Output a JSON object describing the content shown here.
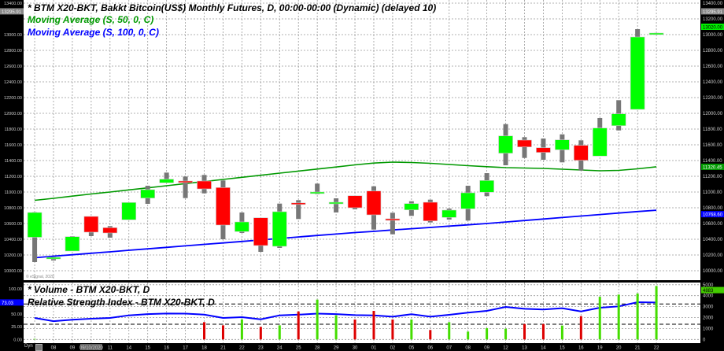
{
  "main_pane": {
    "title": "* BTM X20-BKT, Bakkt Bitcoin(US$) Monthly Futures, D, 00:00-00:00 (Dynamic) (delayed 10)",
    "study1": "Moving Average (S, 50, 0, C)",
    "study2": "Moving Average (S, 100, 0, C)",
    "copyright": "© eSignal, 2020",
    "price_ticks": [
      "13400.00",
      "13200.00",
      "13000.00",
      "12800.00",
      "12600.00",
      "12400.00",
      "12200.00",
      "12000.00",
      "11800.00",
      "11600.00",
      "11400.00",
      "11200.00",
      "11000.00",
      "10800.00",
      "10600.00",
      "10400.00",
      "10200.00",
      "10000.00"
    ],
    "left_tick_labels": [
      "13400.00",
      "13000.00",
      "12800.00",
      "12600.00",
      "12400.00",
      "12200.00",
      "12000.00",
      "11800.00",
      "11600.00",
      "11400.00",
      "11200.00",
      "11000.00",
      "10800.00",
      "10600.00",
      "10400.00",
      "10200.00",
      "10000.00"
    ],
    "tags": {
      "last_gray": "13295.91",
      "last_close": "13020.00",
      "ma50": "11320.45",
      "ma100": "10768.60"
    }
  },
  "lower_pane": {
    "volume_title": "* Volume - BTM X20-BKT, D",
    "rsi_title": "Relative Strength Index - BTM X20-BKT, D",
    "rsi_ticks": [
      "100.00",
      "50.00",
      "25.00",
      "0.00"
    ],
    "rsi_tag": "73.03",
    "volume_ticks": [
      "5000",
      "4000",
      "3000",
      "2000",
      "1000",
      "0"
    ],
    "volume_tag": "4883"
  },
  "x_axis": {
    "mode": "Dyn",
    "labels": [
      "08",
      "09",
      "09/10/2020",
      "11",
      "14",
      "15",
      "16",
      "17",
      "18",
      "21",
      "22",
      "23",
      "24",
      "25",
      "28",
      "29",
      "30",
      "01",
      "02",
      "05",
      "06",
      "07",
      "08",
      "09",
      "12",
      "13",
      "14",
      "15",
      "16",
      "19",
      "20",
      "21",
      "22"
    ],
    "highlighted": "09/10/2020"
  },
  "colors": {
    "up": "#00ff00",
    "down": "#ff0000",
    "wick": "#777777",
    "ma50": "#009900",
    "ma100": "#0000ff",
    "rsi": "#0000ff",
    "vol_up": "#44dd00",
    "vol_down": "#dd0000"
  },
  "chart_data": {
    "type": "candlestick",
    "price_range": [
      10000,
      13400
    ],
    "candles": [
      {
        "date": "",
        "o": 10425,
        "h": 10745,
        "l": 10110,
        "c": 10740
      },
      {
        "date": "08",
        "o": 10150,
        "h": 10175,
        "l": 10130,
        "c": 10170
      },
      {
        "date": "09",
        "o": 10250,
        "h": 10440,
        "l": 10250,
        "c": 10433
      },
      {
        "date": "10",
        "o": 10690,
        "h": 10690,
        "l": 10440,
        "c": 10490
      },
      {
        "date": "11",
        "o": 10547,
        "h": 10567,
        "l": 10420,
        "c": 10480
      },
      {
        "date": "14",
        "o": 10647,
        "h": 10867,
        "l": 10647,
        "c": 10867
      },
      {
        "date": "15",
        "o": 10923,
        "h": 11080,
        "l": 10850,
        "c": 11030
      },
      {
        "date": "16",
        "o": 11117,
        "h": 11247,
        "l": 11117,
        "c": 11163
      },
      {
        "date": "17",
        "o": 11140,
        "h": 11197,
        "l": 10923,
        "c": 11125
      },
      {
        "date": "18",
        "o": 11140,
        "h": 11217,
        "l": 10983,
        "c": 11040
      },
      {
        "date": "21",
        "o": 11057,
        "h": 11147,
        "l": 10400,
        "c": 10580
      },
      {
        "date": "22",
        "o": 10497,
        "h": 10740,
        "l": 10480,
        "c": 10620
      },
      {
        "date": "23",
        "o": 10673,
        "h": 10673,
        "l": 10240,
        "c": 10320
      },
      {
        "date": "24",
        "o": 10310,
        "h": 10853,
        "l": 10290,
        "c": 10750
      },
      {
        "date": "25",
        "o": 10862,
        "h": 10897,
        "l": 10657,
        "c": 10852
      },
      {
        "date": "28",
        "o": 10990,
        "h": 11107,
        "l": 10973,
        "c": 11000
      },
      {
        "date": "29",
        "o": 10860,
        "h": 10920,
        "l": 10740,
        "c": 10870
      },
      {
        "date": "30",
        "o": 10953,
        "h": 10953,
        "l": 10780,
        "c": 10800
      },
      {
        "date": "01",
        "o": 11013,
        "h": 11073,
        "l": 10523,
        "c": 10710
      },
      {
        "date": "02",
        "o": 10660,
        "h": 10737,
        "l": 10463,
        "c": 10640
      },
      {
        "date": "05",
        "o": 10773,
        "h": 10883,
        "l": 10697,
        "c": 10853
      },
      {
        "date": "06",
        "o": 10870,
        "h": 10903,
        "l": 10613,
        "c": 10633
      },
      {
        "date": "07",
        "o": 10677,
        "h": 10790,
        "l": 10650,
        "c": 10770
      },
      {
        "date": "08",
        "o": 10787,
        "h": 11080,
        "l": 10637,
        "c": 10990
      },
      {
        "date": "09",
        "o": 10997,
        "h": 11240,
        "l": 10947,
        "c": 11147
      },
      {
        "date": "12",
        "o": 11493,
        "h": 11863,
        "l": 11340,
        "c": 11713
      },
      {
        "date": "13",
        "o": 11660,
        "h": 11697,
        "l": 11433,
        "c": 11573
      },
      {
        "date": "14",
        "o": 11563,
        "h": 11680,
        "l": 11410,
        "c": 11503
      },
      {
        "date": "15",
        "o": 11537,
        "h": 11733,
        "l": 11377,
        "c": 11663
      },
      {
        "date": "16",
        "o": 11593,
        "h": 11657,
        "l": 11273,
        "c": 11403
      },
      {
        "date": "19",
        "o": 11457,
        "h": 11940,
        "l": 11457,
        "c": 11813
      },
      {
        "date": "20",
        "o": 11843,
        "h": 12167,
        "l": 11783,
        "c": 11993
      },
      {
        "date": "21",
        "o": 12050,
        "h": 13070,
        "l": 12050,
        "c": 12970
      },
      {
        "date": "22",
        "o": 13020,
        "h": 13022,
        "l": 13018,
        "c": 13020
      }
    ],
    "ma50": [
      10895,
      10920,
      10948,
      10975,
      11000,
      11027,
      11053,
      11080,
      11107,
      11133,
      11160,
      11187,
      11213,
      11240,
      11266,
      11292,
      11318,
      11345,
      11368,
      11380,
      11375,
      11365,
      11350,
      11335,
      11322,
      11310,
      11305,
      11300,
      11290,
      11280,
      11270,
      11275,
      11295,
      11320.45
    ],
    "ma100": [
      10165,
      10185,
      10203,
      10222,
      10240,
      10260,
      10278,
      10297,
      10316,
      10335,
      10353,
      10372,
      10391,
      10410,
      10429,
      10448,
      10466,
      10485,
      10500,
      10518,
      10534,
      10550,
      10567,
      10583,
      10600,
      10619,
      10638,
      10657,
      10676,
      10695,
      10714,
      10733,
      10752,
      10768.6
    ],
    "volume": [
      50,
      0,
      0,
      0,
      0,
      0,
      0,
      0,
      0,
      1580,
      1290,
      1840,
      1150,
      1290,
      2560,
      3640,
      2200,
      1820,
      2610,
      1820,
      1820,
      860,
      1580,
      720,
      1030,
      980,
      1410,
      1410,
      1270,
      2130,
      3900,
      4100,
      4200,
      4883
    ],
    "rsi": [
      42.5,
      36,
      39,
      41,
      42.5,
      47.6,
      50,
      51.3,
      51,
      49,
      42.5,
      44,
      39.8,
      47.6,
      49,
      51,
      50,
      48,
      47.6,
      45,
      49.8,
      45,
      48.7,
      52.9,
      56.5,
      64.2,
      60.6,
      59.1,
      61.7,
      55.4,
      62.7,
      65.3,
      73.6,
      73.03
    ],
    "rsi_levels": [
      70,
      30
    ],
    "volume_range": [
      0,
      5000
    ],
    "rsi_range": [
      0,
      100
    ],
    "grid": true
  }
}
